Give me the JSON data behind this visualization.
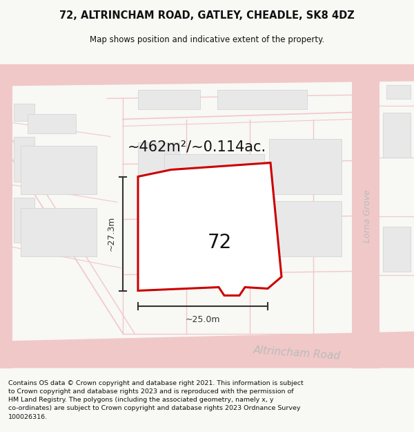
{
  "title": "72, ALTRINCHAM ROAD, GATLEY, CHEADLE, SK8 4DZ",
  "subtitle": "Map shows position and indicative extent of the property.",
  "area_label": "~462m²/~0.114ac.",
  "number_label": "72",
  "dim_vertical": "~27.3m",
  "dim_horizontal": "~25.0m",
  "street_label_bottom": "Altrincham Road",
  "street_label_right": "Lorna Grove",
  "footer_text": "Contains OS data © Crown copyright and database right 2021. This information is subject\nto Crown copyright and database rights 2023 and is reproduced with the permission of\nHM Land Registry. The polygons (including the associated geometry, namely x, y\nco-ordinates) are subject to Crown copyright and database rights 2023 Ordnance Survey\n100026316.",
  "bg_color": "#f8f8f5",
  "map_bg": "#ffffff",
  "road_color": "#f0c8c8",
  "building_color": "#e8e8e8",
  "plot_outline_color": "#cc0000",
  "dim_color": "#333333",
  "street_label_color": "#bbbbbb",
  "title_color": "#111111"
}
